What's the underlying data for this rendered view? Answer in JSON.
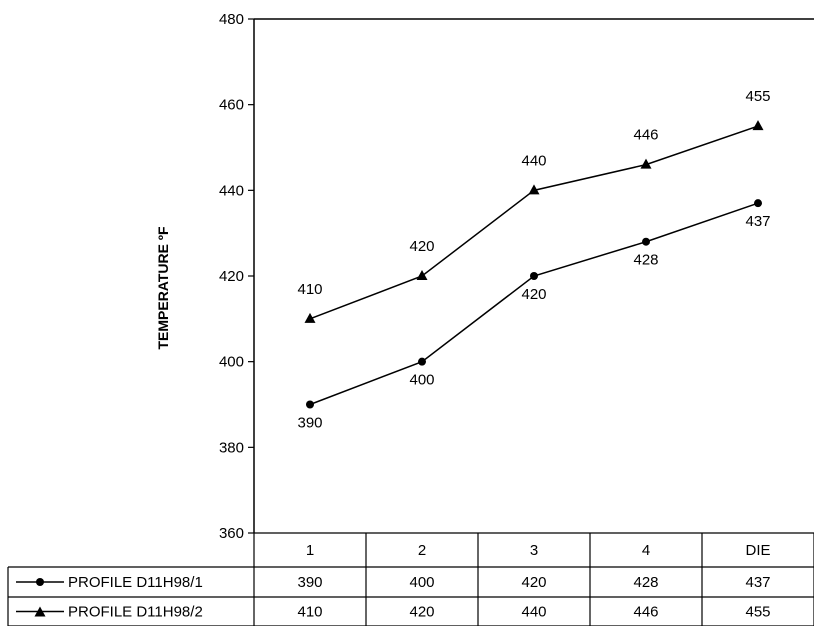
{
  "chart_data": {
    "type": "line",
    "title": "",
    "xlabel": "",
    "ylabel": "TEMPERATURE ºF",
    "ylim": [
      360,
      480
    ],
    "yticks": [
      360,
      380,
      400,
      420,
      440,
      460,
      480
    ],
    "categories": [
      "1",
      "2",
      "3",
      "4",
      "DIE"
    ],
    "grid": false,
    "legend": "data table below plot",
    "series": [
      {
        "name": "PROFILE D11H98/1",
        "marker": "circle",
        "values": [
          390,
          400,
          420,
          428,
          437
        ]
      },
      {
        "name": "PROFILE D11H98/2",
        "marker": "triangle",
        "values": [
          410,
          420,
          440,
          446,
          455
        ]
      }
    ]
  }
}
